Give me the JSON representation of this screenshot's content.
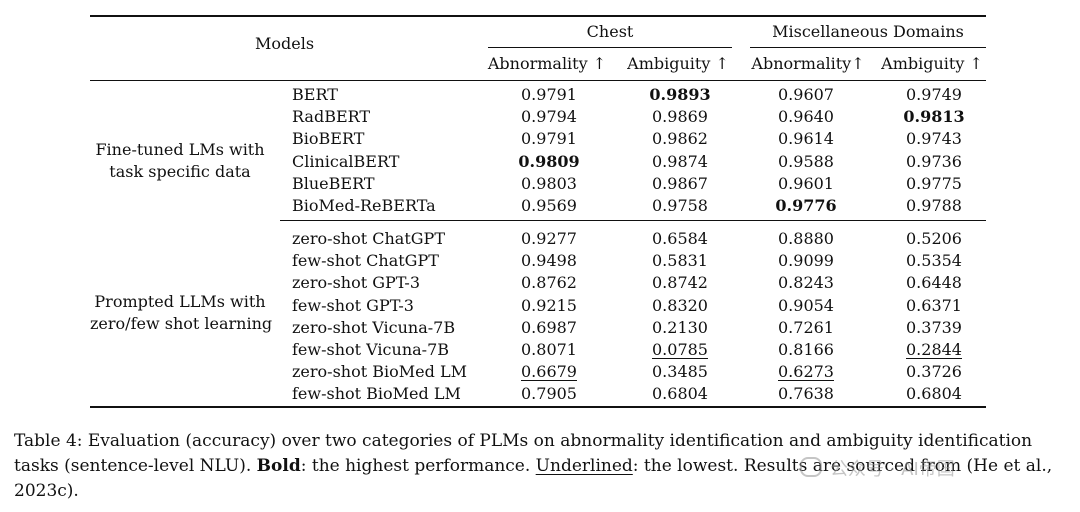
{
  "table": {
    "header": {
      "models": "Models",
      "groups": [
        "Chest",
        "Miscellaneous Domains"
      ],
      "subheaders": [
        "Abnormality ↑",
        "Ambiguity ↑",
        "Abnormality↑",
        "Ambiguity ↑"
      ]
    },
    "groups": [
      {
        "label_lines": [
          "Fine-tuned LMs with",
          "task specific data"
        ],
        "rows": [
          {
            "model": "BERT",
            "values": [
              "0.9791",
              "0.9893",
              "0.9607",
              "0.9749"
            ],
            "bold": [
              false,
              true,
              false,
              false
            ],
            "underline": [
              false,
              false,
              false,
              false
            ]
          },
          {
            "model": "RadBERT",
            "values": [
              "0.9794",
              "0.9869",
              "0.9640",
              "0.9813"
            ],
            "bold": [
              false,
              false,
              false,
              true
            ],
            "underline": [
              false,
              false,
              false,
              false
            ]
          },
          {
            "model": "BioBERT",
            "values": [
              "0.9791",
              "0.9862",
              "0.9614",
              "0.9743"
            ],
            "bold": [
              false,
              false,
              false,
              false
            ],
            "underline": [
              false,
              false,
              false,
              false
            ]
          },
          {
            "model": "ClinicalBERT",
            "values": [
              "0.9809",
              "0.9874",
              "0.9588",
              "0.9736"
            ],
            "bold": [
              true,
              false,
              false,
              false
            ],
            "underline": [
              false,
              false,
              false,
              false
            ]
          },
          {
            "model": "BlueBERT",
            "values": [
              "0.9803",
              "0.9867",
              "0.9601",
              "0.9775"
            ],
            "bold": [
              false,
              false,
              false,
              false
            ],
            "underline": [
              false,
              false,
              false,
              false
            ]
          },
          {
            "model": "BioMed-ReBERTa",
            "values": [
              "0.9569",
              "0.9758",
              "0.9776",
              "0.9788"
            ],
            "bold": [
              false,
              false,
              true,
              false
            ],
            "underline": [
              false,
              false,
              false,
              false
            ]
          }
        ]
      },
      {
        "label_lines": [
          "Prompted LLMs with",
          "zero/few shot learning"
        ],
        "rows": [
          {
            "model": "zero-shot ChatGPT",
            "values": [
              "0.9277",
              "0.6584",
              "0.8880",
              "0.5206"
            ],
            "bold": [
              false,
              false,
              false,
              false
            ],
            "underline": [
              false,
              false,
              false,
              false
            ]
          },
          {
            "model": "few-shot ChatGPT",
            "values": [
              "0.9498",
              "0.5831",
              "0.9099",
              "0.5354"
            ],
            "bold": [
              false,
              false,
              false,
              false
            ],
            "underline": [
              false,
              false,
              false,
              false
            ]
          },
          {
            "model": "zero-shot GPT-3",
            "values": [
              "0.8762",
              "0.8742",
              "0.8243",
              "0.6448"
            ],
            "bold": [
              false,
              false,
              false,
              false
            ],
            "underline": [
              false,
              false,
              false,
              false
            ]
          },
          {
            "model": "few-shot GPT-3",
            "values": [
              "0.9215",
              "0.8320",
              "0.9054",
              "0.6371"
            ],
            "bold": [
              false,
              false,
              false,
              false
            ],
            "underline": [
              false,
              false,
              false,
              false
            ]
          },
          {
            "model": "zero-shot Vicuna-7B",
            "values": [
              "0.6987",
              "0.2130",
              "0.7261",
              "0.3739"
            ],
            "bold": [
              false,
              false,
              false,
              false
            ],
            "underline": [
              false,
              false,
              false,
              false
            ]
          },
          {
            "model": "few-shot Vicuna-7B",
            "values": [
              "0.8071",
              "0.0785",
              "0.8166",
              "0.2844"
            ],
            "bold": [
              false,
              false,
              false,
              false
            ],
            "underline": [
              false,
              true,
              false,
              true
            ]
          },
          {
            "model": "zero-shot BioMed LM",
            "values": [
              "0.6679",
              "0.3485",
              "0.6273",
              "0.3726"
            ],
            "bold": [
              false,
              false,
              false,
              false
            ],
            "underline": [
              true,
              false,
              true,
              false
            ]
          },
          {
            "model": "few-shot BioMed LM",
            "values": [
              "0.7905",
              "0.6804",
              "0.7638",
              "0.6804"
            ],
            "bold": [
              false,
              false,
              false,
              false
            ],
            "underline": [
              false,
              false,
              false,
              false
            ]
          }
        ]
      }
    ]
  },
  "caption": {
    "prefix": "Table 4:  Evaluation (accuracy) over two categories of PLMs on abnormality identification and ambiguity identification tasks (sentence-level NLU). ",
    "bold_label": "Bold",
    "mid": ": the highest performance. ",
    "underline_label": "Underlined",
    "suffix": ": the lowest. Results are sourced from (He et al., 2023c)."
  },
  "watermark": "公众号 · AI帝国"
}
